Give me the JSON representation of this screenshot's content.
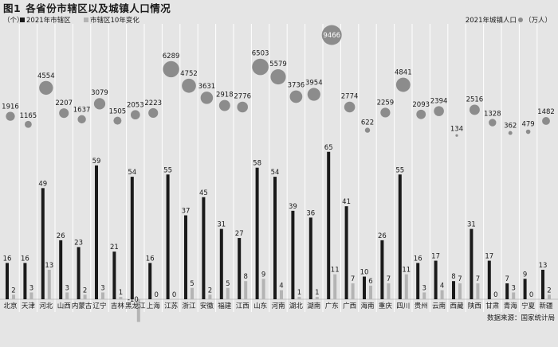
{
  "header": {
    "fig_no": "图1",
    "title": "各省份市辖区以及城镇人口情况"
  },
  "legend": {
    "unit_left": "（个）",
    "bar_2021": "2021年市辖区",
    "bar_change": "市辖区10年变化",
    "pop_label": "2021年城镇人口",
    "pop_unit": "（万人）"
  },
  "source": "数据来源：国家统计局",
  "colors": {
    "background": "#e5e5e5",
    "bar_2021": "#1a1a1a",
    "bar_change": "#b4b4b4",
    "bubble": "#8c8c8c",
    "column_guides": "#ffffff"
  },
  "chart_data": {
    "type": "bar",
    "categories": [
      "北京",
      "天津",
      "河北",
      "山西",
      "内蒙古",
      "辽宁",
      "吉林",
      "黑龙江",
      "上海",
      "江苏",
      "浙江",
      "安徽",
      "福建",
      "江西",
      "山东",
      "河南",
      "湖北",
      "湖南",
      "广东",
      "广西",
      "海南",
      "重庆",
      "四川",
      "贵州",
      "云南",
      "西藏",
      "陕西",
      "甘肃",
      "青海",
      "宁夏",
      "新疆"
    ],
    "series": [
      {
        "name": "2021年市辖区",
        "values": [
          16,
          16,
          49,
          26,
          23,
          59,
          21,
          54,
          16,
          55,
          37,
          45,
          31,
          27,
          58,
          54,
          39,
          36,
          65,
          41,
          10,
          26,
          55,
          16,
          17,
          8,
          31,
          17,
          7,
          9,
          13
        ]
      },
      {
        "name": "市辖区10年变化",
        "values": [
          2,
          3,
          13,
          3,
          2,
          3,
          1,
          -10,
          0,
          0,
          5,
          2,
          5,
          8,
          9,
          4,
          1,
          1,
          11,
          7,
          6,
          7,
          11,
          3,
          4,
          7,
          7,
          0,
          3,
          0,
          2
        ]
      },
      {
        "name": "2021年城镇人口",
        "values": [
          1916,
          1165,
          4554,
          2207,
          1637,
          3079,
          1505,
          2053,
          2223,
          6289,
          4752,
          3631,
          2918,
          2776,
          6503,
          5579,
          3736,
          3954,
          9466,
          2774,
          622,
          2259,
          4841,
          2093,
          2394,
          134,
          2516,
          1328,
          362,
          479,
          1482
        ]
      }
    ],
    "ylabel": "（个）",
    "y2label": "（万人）"
  }
}
